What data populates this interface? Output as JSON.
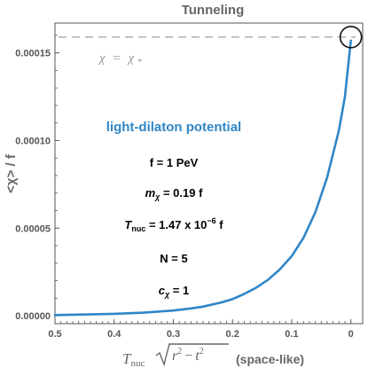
{
  "chart_data": {
    "type": "line",
    "title": "Tunneling",
    "ylabel": "<χ> / f",
    "xlabel": {
      "prefix": "T",
      "prefix_sub": "nuc",
      "radicand_r": "r",
      "radicand_t": "t",
      "exponent": "2",
      "minus": "−",
      "suffix": "(space-like)"
    },
    "x_reversed": true,
    "xlim": [
      0.5,
      -0.02
    ],
    "ylim": [
      -4.5e-06,
      0.000167
    ],
    "x_ticks": [
      0.5,
      0.4,
      0.3,
      0.2,
      0.1,
      0.0
    ],
    "x_tick_labels": [
      "0.5",
      "0.4",
      "0.3",
      "0.2",
      "0.1",
      "0"
    ],
    "y_ticks": [
      0.0,
      5e-05,
      0.0001,
      0.00015
    ],
    "y_tick_labels": [
      "0.00000",
      "0.00005",
      "0.00010",
      "0.00015"
    ],
    "grid": false,
    "reference_line": {
      "y": 0.000159,
      "label_left": "χ",
      "label_eq": "=",
      "label_right": "χ",
      "label_right_sub": "*",
      "color": "#aaaaaa"
    },
    "series": [
      {
        "name": "light-dilaton potential",
        "color": "#2f86c7",
        "x": [
          0.5,
          0.45,
          0.4,
          0.35,
          0.3,
          0.27,
          0.25,
          0.22,
          0.2,
          0.18,
          0.16,
          0.14,
          0.12,
          0.1,
          0.08,
          0.06,
          0.04,
          0.02,
          0.01,
          0.0
        ],
        "y": [
          4e-07,
          7e-07,
          1.1e-06,
          1.8e-06,
          3e-06,
          4.2e-06,
          5.2e-06,
          7.5e-06,
          9.5e-06,
          1.25e-05,
          1.6e-05,
          2.05e-05,
          2.65e-05,
          3.4e-05,
          4.45e-05,
          5.9e-05,
          7.9e-05,
          0.000106,
          0.000125,
          0.000157
        ]
      }
    ],
    "endpoint_marker": {
      "x": 0.0,
      "y": 0.000159,
      "shape": "circle"
    },
    "annotations": {
      "model": "light-dilaton potential",
      "f_line": "f = 1 PeV",
      "m_line": {
        "sym": "m",
        "sub": "χ",
        "rest": " = 0.19 f"
      },
      "t_line": {
        "sym": "T",
        "sub": "nuc",
        "rest": " = 1.47 x 10",
        "exp": "−6",
        "tail": " f"
      },
      "n_line": "N = 5",
      "c_line": {
        "sym": "c",
        "sub": "χ",
        "rest": " = 1"
      }
    },
    "colors": {
      "axis": "#555555",
      "label": "#666666",
      "title": "#666666",
      "annotation_model": "#2f86c7",
      "annotation_text": "#000000"
    }
  }
}
